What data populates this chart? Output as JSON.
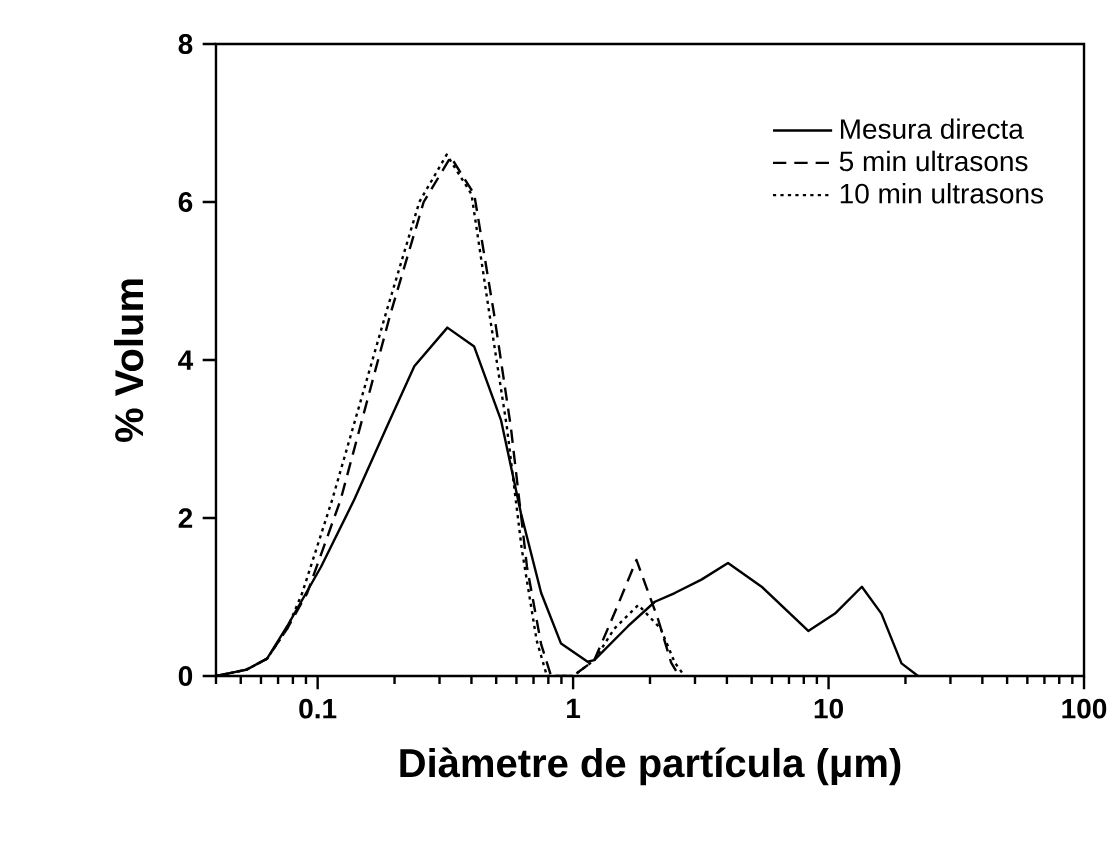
{
  "chart_data": {
    "type": "line",
    "xlabel": "Diàmetre de partícula (μm)",
    "ylabel": "% Volum",
    "log": "x",
    "xlim": [
      0.04,
      100
    ],
    "ylim": [
      0,
      8
    ],
    "xticks": [
      0.1,
      1,
      10,
      100
    ],
    "yticks": [
      0,
      2,
      4,
      6,
      8
    ],
    "grid": false,
    "legend": "top right",
    "marker": "none",
    "series": [
      {
        "name": "Mesura directa",
        "color": "#000000",
        "line_style": "solid",
        "x": [
          0.04,
          0.0527,
          0.0634,
          0.076,
          0.103,
          0.139,
          0.187,
          0.239,
          0.322,
          0.41,
          0.522,
          0.625,
          0.75,
          0.897,
          1.14,
          1.21,
          1.64,
          2.09,
          2.5,
          3.18,
          4.04,
          5.47,
          8.33,
          10.6,
          13.5,
          16.1,
          19.3,
          22.4
        ],
        "values": [
          0,
          0.08,
          0.22,
          0.63,
          1.38,
          2.23,
          3.16,
          3.92,
          4.41,
          4.17,
          3.24,
          2.06,
          1.05,
          0.41,
          0.18,
          0.2,
          0.63,
          0.94,
          1.05,
          1.22,
          1.43,
          1.13,
          0.57,
          0.79,
          1.13,
          0.79,
          0.16,
          0
        ]
      },
      {
        "name": "5 min ultrasons",
        "color": "#000000",
        "line_style": "dashed",
        "x": [
          0.04,
          0.0527,
          0.0634,
          0.076,
          0.091,
          0.123,
          0.193,
          0.26,
          0.332,
          0.41,
          0.49,
          0.57,
          0.66,
          0.75,
          0.82,
          1.0,
          1.21,
          1.45,
          1.77,
          2.15,
          2.42,
          2.6
        ],
        "values": [
          0,
          0.08,
          0.22,
          0.6,
          1.05,
          2.23,
          4.59,
          6.0,
          6.57,
          6.1,
          4.59,
          3.16,
          1.38,
          0.4,
          0,
          0,
          0.2,
          0.79,
          1.47,
          0.72,
          0.17,
          0
        ]
      },
      {
        "name": "10 min ultrasons",
        "color": "#000000",
        "line_style": "dotted",
        "x": [
          0.04,
          0.0527,
          0.0634,
          0.076,
          0.087,
          0.114,
          0.185,
          0.25,
          0.32,
          0.4,
          0.47,
          0.55,
          0.63,
          0.72,
          0.79,
          1.0,
          1.21,
          1.45,
          1.8,
          2.2,
          2.5,
          2.73
        ],
        "values": [
          0,
          0.08,
          0.22,
          0.6,
          1.05,
          2.23,
          4.59,
          6.0,
          6.6,
          6.1,
          4.59,
          3.16,
          1.6,
          0.45,
          0,
          0,
          0.2,
          0.6,
          0.9,
          0.6,
          0.17,
          0
        ]
      }
    ]
  }
}
